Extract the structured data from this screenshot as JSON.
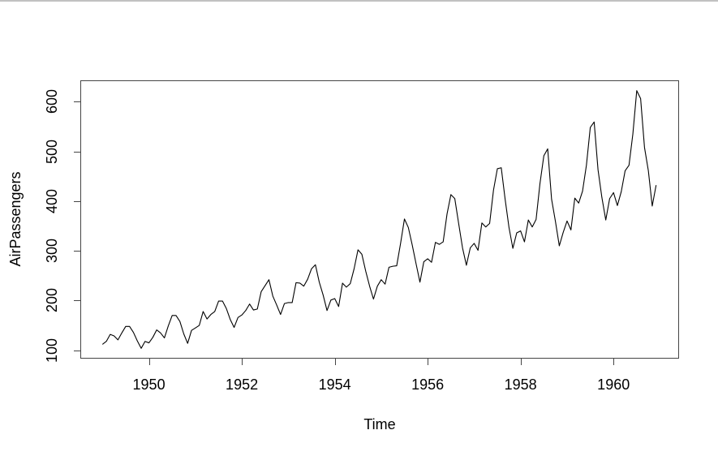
{
  "pane": {
    "background_color": "#ffffff",
    "top_border_color": "#c1c1c1"
  },
  "chart_data": {
    "type": "line",
    "title": "",
    "xlabel": "Time",
    "ylabel": "AirPassengers",
    "grid": false,
    "legend": "none",
    "axis_color": "#454545",
    "xlim": [
      1948.5233,
      1961.3933
    ],
    "ylim": [
      83.28,
      642.72
    ],
    "x_ticks": [
      1950,
      1952,
      1954,
      1956,
      1958,
      1960
    ],
    "y_ticks": [
      100,
      200,
      300,
      400,
      500,
      600
    ],
    "series": [
      {
        "name": "AirPassengers",
        "color": "#000000",
        "start_year": 1949,
        "points_per_year": 12,
        "values": [
          112,
          118,
          132,
          129,
          121,
          135,
          148,
          148,
          136,
          119,
          104,
          118,
          115,
          126,
          141,
          135,
          125,
          149,
          170,
          170,
          158,
          133,
          114,
          140,
          145,
          150,
          178,
          163,
          172,
          178,
          199,
          199,
          184,
          162,
          146,
          166,
          171,
          180,
          193,
          181,
          183,
          218,
          230,
          242,
          209,
          191,
          172,
          194,
          196,
          196,
          236,
          235,
          229,
          243,
          264,
          272,
          237,
          211,
          180,
          201,
          204,
          188,
          235,
          227,
          234,
          264,
          302,
          293,
          259,
          229,
          203,
          229,
          242,
          233,
          267,
          269,
          270,
          315,
          364,
          347,
          312,
          274,
          237,
          278,
          284,
          277,
          317,
          313,
          318,
          374,
          413,
          405,
          355,
          306,
          271,
          306,
          315,
          301,
          356,
          348,
          355,
          422,
          465,
          467,
          404,
          347,
          305,
          336,
          340,
          318,
          362,
          348,
          363,
          435,
          491,
          505,
          404,
          359,
          310,
          337,
          360,
          342,
          406,
          396,
          420,
          472,
          548,
          559,
          463,
          407,
          362,
          405,
          417,
          391,
          419,
          461,
          472,
          535,
          622,
          606,
          508,
          461,
          390,
          432
        ]
      }
    ]
  }
}
